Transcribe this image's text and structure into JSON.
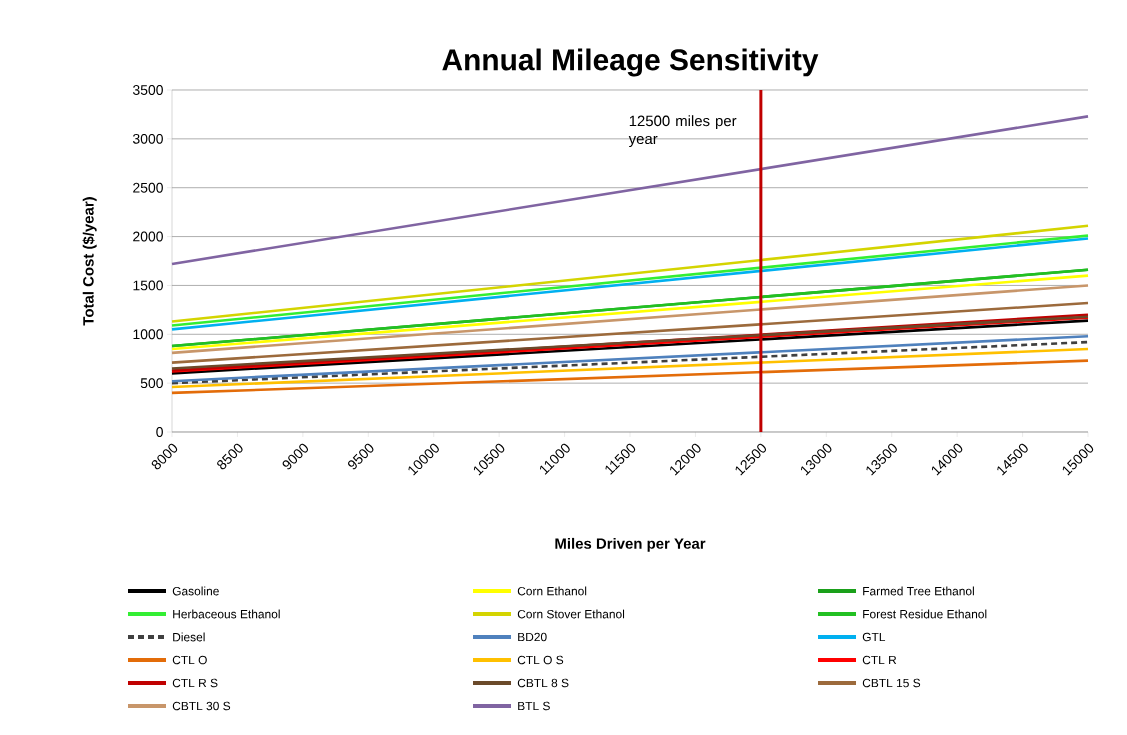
{
  "chart_data": {
    "type": "line",
    "title": "Annual Mileage Sensitivity",
    "xlabel": "Miles Driven per Year",
    "ylabel": "Total Cost ($/year)",
    "x": [
      8000,
      15000
    ],
    "series": [
      {
        "name": "Gasoline",
        "color": "#000000",
        "values": [
          600,
          1140
        ]
      },
      {
        "name": "Corn Ethanol",
        "color": "#ffff00",
        "values": [
          850,
          1600
        ]
      },
      {
        "name": "Farmed Tree Ethanol",
        "color": "#1aa01a",
        "values": [
          880,
          1660
        ]
      },
      {
        "name": "Herbaceous Ethanol",
        "color": "#33ee33",
        "values": [
          1090,
          2010
        ]
      },
      {
        "name": "Corn Stover Ethanol",
        "color": "#d4d400",
        "values": [
          1130,
          2110
        ]
      },
      {
        "name": "Forest Residue Ethanol",
        "color": "#22c022",
        "values": [
          880,
          1660
        ]
      },
      {
        "name": "Diesel",
        "color": "#404040",
        "line_style": "dashed",
        "values": [
          500,
          920
        ]
      },
      {
        "name": "BD20",
        "color": "#4f81bd",
        "values": [
          520,
          980
        ]
      },
      {
        "name": "GTL",
        "color": "#00b0f0",
        "values": [
          1050,
          1980
        ]
      },
      {
        "name": "CTL O",
        "color": "#e36c09",
        "values": [
          400,
          730
        ]
      },
      {
        "name": "CTL O S",
        "color": "#ffc000",
        "values": [
          460,
          850
        ]
      },
      {
        "name": "CTL R",
        "color": "#ff0000",
        "values": [
          620,
          1170
        ]
      },
      {
        "name": "CTL R S",
        "color": "#c00000",
        "values": [
          630,
          1200
        ]
      },
      {
        "name": "CBTL 8 S",
        "color": "#6b4a2a",
        "values": [
          650,
          1180
        ]
      },
      {
        "name": "CBTL 15 S",
        "color": "#9c6a3c",
        "values": [
          710,
          1320
        ]
      },
      {
        "name": "CBTL 30 S",
        "color": "#c8966a",
        "values": [
          810,
          1500
        ]
      },
      {
        "name": "BTL S",
        "color": "#8064a2",
        "values": [
          1720,
          3230
        ]
      }
    ],
    "xlim": [
      8000,
      15000
    ],
    "xticks": [
      8000,
      8500,
      9000,
      9500,
      10000,
      10500,
      11000,
      11500,
      12000,
      12500,
      13000,
      13500,
      14000,
      14500,
      15000
    ],
    "ylim": [
      0,
      3500
    ],
    "yticks": [
      0,
      500,
      1000,
      1500,
      2000,
      2500,
      3000,
      3500
    ],
    "ref_lines": [
      {
        "axis": "x",
        "value": 12500,
        "label": "12500 miles per year",
        "color": "#c00000"
      }
    ],
    "grid": "y",
    "legend": "bottom"
  }
}
